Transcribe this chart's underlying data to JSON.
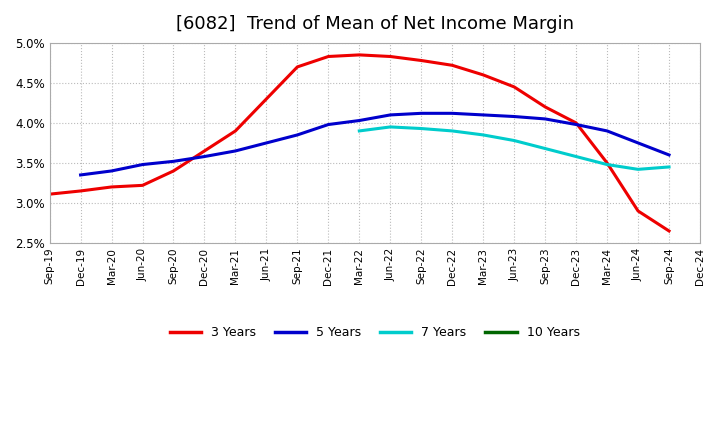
{
  "title": "[6082]  Trend of Mean of Net Income Margin",
  "title_fontsize": 13,
  "ylim": [
    0.025,
    0.05
  ],
  "yticks": [
    0.025,
    0.03,
    0.035,
    0.04,
    0.045,
    0.05
  ],
  "background_color": "#ffffff",
  "plot_bg_color": "#ffffff",
  "grid_color": "#bbbbbb",
  "xtick_labels": [
    "Sep-19",
    "Dec-19",
    "Mar-20",
    "Jun-20",
    "Sep-20",
    "Dec-20",
    "Mar-21",
    "Jun-21",
    "Sep-21",
    "Dec-21",
    "Mar-22",
    "Jun-22",
    "Sep-22",
    "Dec-22",
    "Mar-23",
    "Jun-23",
    "Sep-23",
    "Dec-23",
    "Mar-24",
    "Jun-24",
    "Sep-24",
    "Dec-24"
  ],
  "series": [
    {
      "label": "3 Years",
      "color": "#ee0000",
      "linewidth": 2.2,
      "x_indices": [
        0,
        1,
        2,
        3,
        4,
        5,
        6,
        7,
        8,
        9,
        10,
        11,
        12,
        13,
        14,
        15,
        16,
        17,
        18,
        19,
        20
      ],
      "values": [
        0.0311,
        0.0315,
        0.032,
        0.0322,
        0.034,
        0.0365,
        0.039,
        0.043,
        0.047,
        0.0483,
        0.0485,
        0.0483,
        0.0478,
        0.0472,
        0.046,
        0.0445,
        0.042,
        0.04,
        0.035,
        0.029,
        0.0265
      ]
    },
    {
      "label": "5 Years",
      "color": "#0000cc",
      "linewidth": 2.2,
      "x_indices": [
        1,
        2,
        3,
        4,
        5,
        6,
        7,
        8,
        9,
        10,
        11,
        12,
        13,
        14,
        15,
        16,
        17,
        18,
        19,
        20
      ],
      "values": [
        0.0335,
        0.034,
        0.0348,
        0.0352,
        0.0358,
        0.0365,
        0.0375,
        0.0385,
        0.0398,
        0.0403,
        0.041,
        0.0412,
        0.0412,
        0.041,
        0.0408,
        0.0405,
        0.0398,
        0.039,
        0.0375,
        0.036
      ]
    },
    {
      "label": "7 Years",
      "color": "#00cccc",
      "linewidth": 2.2,
      "x_indices": [
        10,
        11,
        12,
        13,
        14,
        15,
        16,
        17,
        18,
        19,
        20
      ],
      "values": [
        0.039,
        0.0395,
        0.0393,
        0.039,
        0.0385,
        0.0378,
        0.0368,
        0.0358,
        0.0348,
        0.0342,
        0.0345
      ]
    },
    {
      "label": "10 Years",
      "color": "#006600",
      "linewidth": 2.2,
      "x_indices": [],
      "values": []
    }
  ],
  "legend_labels": [
    "3 Years",
    "5 Years",
    "7 Years",
    "10 Years"
  ],
  "legend_colors": [
    "#ee0000",
    "#0000cc",
    "#00cccc",
    "#006600"
  ]
}
